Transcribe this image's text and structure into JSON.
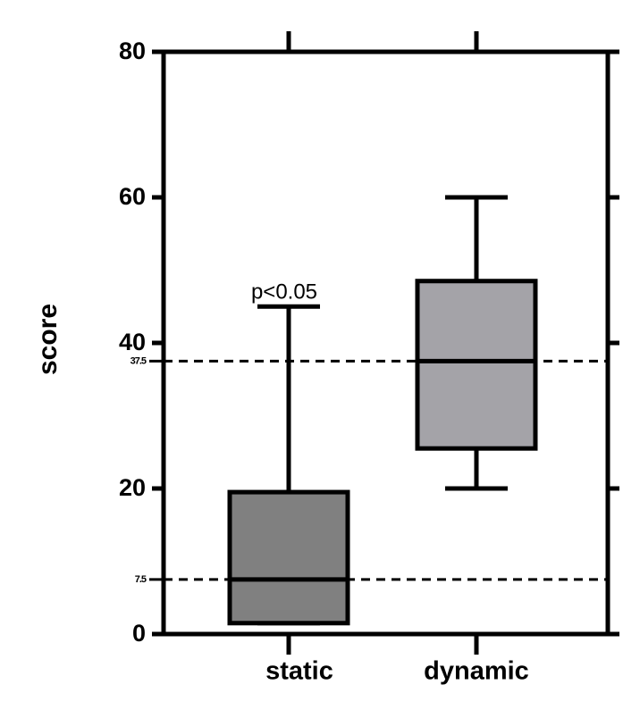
{
  "chart_data": {
    "type": "box",
    "y_label": "score",
    "annotation": "p<0.05",
    "categories": [
      "static",
      "dynamic"
    ],
    "boxes": [
      {
        "min": 1.5,
        "q1": 1.5,
        "median": 7.5,
        "q3": 19.5,
        "max": 45,
        "color": "#808080"
      },
      {
        "min": 20,
        "q1": 25.5,
        "median": 37.5,
        "q3": 48.5,
        "max": 60,
        "color": "#a4a3a8"
      }
    ],
    "ylim": [
      0,
      80
    ],
    "yticks": [
      0,
      20,
      40,
      60,
      80
    ],
    "reference_lines": [
      7.5,
      37.5
    ]
  }
}
